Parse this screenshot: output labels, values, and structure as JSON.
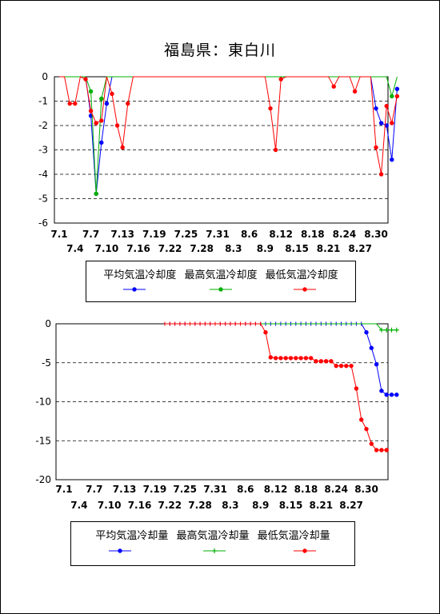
{
  "title": "福島県：東白川",
  "chart_data": [
    {
      "type": "line",
      "ylim": [
        -6,
        0
      ],
      "yticks": [
        "0",
        "-1",
        "-2",
        "-3",
        "-4",
        "-5",
        "-6"
      ],
      "xticks_top": [
        "7.1",
        "7.7",
        "7.13",
        "7.19",
        "7.25",
        "7.31",
        "8.6",
        "8.12",
        "8.18",
        "8.24",
        "8.30"
      ],
      "xticks_bottom": [
        "7.4",
        "7.10",
        "7.16",
        "7.22",
        "7.28",
        "8.3",
        "8.9",
        "8.15",
        "8.21",
        "8.27"
      ],
      "grid": "horizontal dashed",
      "legend_position": "bottom",
      "days": 62,
      "series": [
        {
          "name": "平均気温冷却度",
          "color": "#0000ff",
          "marker": "dot",
          "values": {
            "7": -1.6,
            "8": -4.8,
            "9": -2.7,
            "10": -1.1,
            "61": -1.3,
            "62": -1.9,
            "63": -2.0,
            "64": -3.4,
            "65": -0.5
          }
        },
        {
          "name": "最高気温冷却度",
          "color": "#00b000",
          "marker": "dot",
          "values": {
            "7": -0.6,
            "8": -4.8,
            "9": -0.9,
            "64": -0.8
          }
        },
        {
          "name": "最低気温冷却度",
          "color": "#ff0000",
          "marker": "dot",
          "values": {
            "3": -1.1,
            "4": -1.1,
            "6": -0.1,
            "7": -1.4,
            "8": -1.9,
            "9": -1.8,
            "11": -0.7,
            "12": -2.0,
            "13": -2.9,
            "14": -1.1,
            "41": -1.3,
            "42": -3.0,
            "43": -0.1,
            "53": -0.4,
            "57": -0.6,
            "61": -2.9,
            "62": -4.0,
            "63": -1.2,
            "64": -1.9,
            "65": -0.8
          }
        }
      ]
    },
    {
      "type": "line",
      "ylim": [
        -20,
        0
      ],
      "yticks": [
        "0",
        "-5",
        "-10",
        "-15",
        "-20"
      ],
      "xticks_top": [
        "7.1",
        "7.7",
        "7.13",
        "7.19",
        "7.25",
        "7.31",
        "8.6",
        "8.12",
        "8.18",
        "8.24",
        "8.30"
      ],
      "xticks_bottom": [
        "7.4",
        "7.10",
        "7.16",
        "7.22",
        "7.28",
        "8.3",
        "8.9",
        "8.15",
        "8.21",
        "8.27"
      ],
      "grid": "horizontal dashed",
      "legend_position": "bottom",
      "start_day": 21,
      "series": [
        {
          "name": "平均気温冷却量",
          "color": "#0000ff",
          "marker": "dot",
          "values": [
            0,
            0,
            0,
            0,
            0,
            0,
            0,
            0,
            0,
            0,
            0,
            0,
            0,
            0,
            0,
            0,
            0,
            0,
            0,
            0,
            0,
            0,
            0,
            0,
            0,
            0,
            0,
            0,
            0,
            0,
            0,
            0,
            0,
            0,
            0,
            0,
            0,
            0,
            0,
            0,
            -1.1,
            -3.1,
            -5.2,
            -8.6,
            -9.1,
            -9.1,
            -9.1
          ]
        },
        {
          "name": "最高気温冷却量",
          "color": "#00b000",
          "marker": "plus",
          "values": [
            0,
            0,
            0,
            0,
            0,
            0,
            0,
            0,
            0,
            0,
            0,
            0,
            0,
            0,
            0,
            0,
            0,
            0,
            0,
            0,
            0,
            0,
            0,
            0,
            0,
            0,
            0,
            0,
            0,
            0,
            0,
            0,
            0,
            0,
            0,
            0,
            0,
            0,
            0,
            0,
            0,
            0,
            0,
            -0.8,
            -0.8,
            -0.8,
            -0.8
          ]
        },
        {
          "name": "最低気温冷却量",
          "color": "#ff0000",
          "marker": "dot",
          "values": [
            0,
            0,
            0,
            0,
            0,
            0,
            0,
            0,
            0,
            0,
            0,
            0,
            0,
            0,
            0,
            0,
            0,
            0,
            0,
            0,
            -1.1,
            -4.3,
            -4.4,
            -4.4,
            -4.4,
            -4.4,
            -4.4,
            -4.4,
            -4.4,
            -4.4,
            -4.8,
            -4.8,
            -4.8,
            -4.8,
            -5.4,
            -5.4,
            -5.4,
            -5.4,
            -8.3,
            -12.3,
            -13.5,
            -15.4,
            -16.2,
            -16.2,
            -16.2
          ]
        }
      ]
    }
  ]
}
